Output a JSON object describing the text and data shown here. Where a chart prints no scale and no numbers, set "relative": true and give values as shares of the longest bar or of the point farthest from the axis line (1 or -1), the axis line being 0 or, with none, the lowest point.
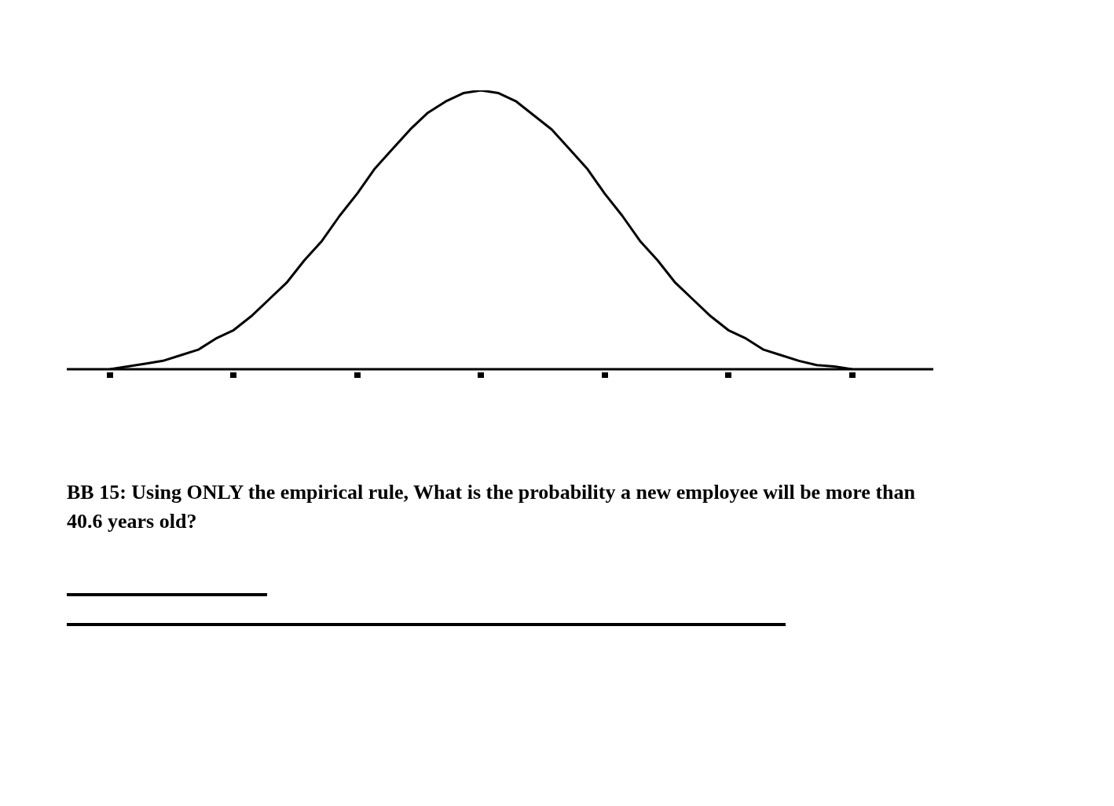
{
  "chart_data": {
    "type": "line",
    "relative": true,
    "marker": "none",
    "color": "#000000",
    "categories": [
      null,
      null,
      null,
      null,
      null,
      null,
      null,
      null,
      null,
      null,
      null,
      null,
      null,
      null,
      null,
      null,
      null,
      null,
      null,
      null,
      null,
      null,
      null,
      null,
      null,
      null,
      null,
      null,
      null,
      null,
      null,
      null,
      null,
      null,
      null,
      null,
      null,
      null,
      null,
      null,
      null,
      null,
      null
    ],
    "values": [
      0,
      0.01,
      0.02,
      0.03,
      0.05,
      0.07,
      0.11,
      0.14,
      0.19,
      0.25,
      0.31,
      0.39,
      0.46,
      0.55,
      0.63,
      0.72,
      0.79,
      0.86,
      0.92,
      0.96,
      0.99,
      1,
      0.99,
      0.96,
      0.91,
      0.86,
      0.79,
      0.72,
      0.63,
      0.55,
      0.46,
      0.39,
      0.31,
      0.25,
      0.19,
      0.14,
      0.11,
      0.07,
      0.05,
      0.03,
      0.015,
      0.01,
      0
    ],
    "annotations": [
      "BB 15: Using ONLY the empirical rule, What is the probability a new employee will be more than 40.6  years old?"
    ]
  }
}
